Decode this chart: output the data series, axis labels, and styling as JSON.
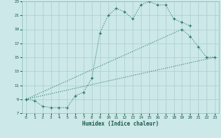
{
  "xlabel": "Humidex (Indice chaleur)",
  "bg_color": "#cce8e8",
  "grid_color": "#aacccc",
  "line_color": "#2a7a6a",
  "xlim": [
    -0.5,
    23.5
  ],
  "ylim": [
    7,
    23
  ],
  "xticks": [
    0,
    1,
    2,
    3,
    4,
    5,
    6,
    7,
    8,
    9,
    10,
    11,
    12,
    13,
    14,
    15,
    16,
    17,
    18,
    19,
    20,
    21,
    22,
    23
  ],
  "yticks": [
    7,
    9,
    11,
    13,
    15,
    17,
    19,
    21,
    23
  ],
  "line1_x": [
    0,
    1,
    2,
    3,
    4,
    5,
    6,
    7,
    8,
    9,
    10,
    11,
    12,
    13,
    14,
    15,
    16,
    17,
    18,
    19,
    20
  ],
  "line1_y": [
    9.0,
    8.8,
    8.0,
    7.8,
    7.8,
    7.8,
    9.5,
    10.0,
    12.0,
    18.5,
    21.0,
    22.0,
    21.5,
    20.5,
    22.5,
    23.0,
    22.5,
    22.5,
    20.5,
    20.0,
    19.5
  ],
  "line2_x": [
    0,
    19,
    20,
    21,
    22,
    23
  ],
  "line2_y": [
    9.0,
    19.0,
    18.0,
    16.5,
    15.0,
    15.0
  ],
  "line3_x": [
    0,
    23
  ],
  "line3_y": [
    9.0,
    15.0
  ]
}
